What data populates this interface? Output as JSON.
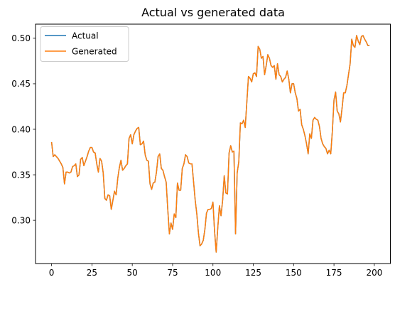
{
  "chart_data": {
    "type": "line",
    "title": "Actual vs generated data",
    "xlabel": "",
    "ylabel": "",
    "xlim": [
      -9.95,
      209.95
    ],
    "ylim": [
      0.2525,
      0.5155
    ],
    "x_ticks": [
      0,
      25,
      50,
      75,
      100,
      125,
      150,
      175,
      200
    ],
    "x_tick_labels": [
      "0",
      "25",
      "50",
      "75",
      "100",
      "125",
      "150",
      "175",
      "200"
    ],
    "y_ticks": [
      0.3,
      0.35,
      0.4,
      0.45,
      0.5
    ],
    "y_tick_labels": [
      "0.30",
      "0.35",
      "0.40",
      "0.45",
      "0.50"
    ],
    "grid": false,
    "legend_position": "upper-left",
    "x_start": 0,
    "x_step": 1,
    "series": [
      {
        "name": "Actual",
        "color": "#1f77b4",
        "values": [
          0.386,
          0.37,
          0.372,
          0.37,
          0.368,
          0.365,
          0.362,
          0.358,
          0.34,
          0.353,
          0.353,
          0.352,
          0.353,
          0.359,
          0.36,
          0.362,
          0.348,
          0.35,
          0.367,
          0.369,
          0.36,
          0.365,
          0.37,
          0.376,
          0.38,
          0.38,
          0.375,
          0.374,
          0.362,
          0.353,
          0.368,
          0.365,
          0.352,
          0.324,
          0.322,
          0.328,
          0.327,
          0.312,
          0.322,
          0.332,
          0.328,
          0.346,
          0.358,
          0.366,
          0.355,
          0.357,
          0.36,
          0.362,
          0.39,
          0.394,
          0.384,
          0.394,
          0.398,
          0.401,
          0.402,
          0.383,
          0.384,
          0.387,
          0.372,
          0.366,
          0.365,
          0.34,
          0.334,
          0.341,
          0.342,
          0.353,
          0.37,
          0.373,
          0.357,
          0.355,
          0.348,
          0.342,
          0.312,
          0.285,
          0.297,
          0.29,
          0.307,
          0.303,
          0.341,
          0.333,
          0.333,
          0.357,
          0.362,
          0.372,
          0.37,
          0.363,
          0.362,
          0.362,
          0.342,
          0.322,
          0.307,
          0.286,
          0.272,
          0.274,
          0.278,
          0.29,
          0.308,
          0.312,
          0.312,
          0.313,
          0.32,
          0.288,
          0.265,
          0.292,
          0.316,
          0.305,
          0.322,
          0.349,
          0.33,
          0.329,
          0.374,
          0.382,
          0.375,
          0.376,
          0.285,
          0.352,
          0.364,
          0.407,
          0.406,
          0.41,
          0.402,
          0.43,
          0.458,
          0.456,
          0.452,
          0.461,
          0.462,
          0.458,
          0.491,
          0.488,
          0.478,
          0.48,
          0.46,
          0.47,
          0.482,
          0.478,
          0.47,
          0.468,
          0.47,
          0.455,
          0.472,
          0.46,
          0.458,
          0.452,
          0.455,
          0.457,
          0.464,
          0.455,
          0.44,
          0.45,
          0.45,
          0.44,
          0.434,
          0.42,
          0.422,
          0.405,
          0.4,
          0.393,
          0.384,
          0.373,
          0.395,
          0.39,
          0.41,
          0.413,
          0.411,
          0.41,
          0.403,
          0.39,
          0.384,
          0.381,
          0.379,
          0.373,
          0.377,
          0.373,
          0.398,
          0.432,
          0.441,
          0.42,
          0.417,
          0.408,
          0.423,
          0.44,
          0.44,
          0.448,
          0.46,
          0.472,
          0.499,
          0.492,
          0.49,
          0.503,
          0.497,
          0.493,
          0.502,
          0.503,
          0.499,
          0.496,
          0.492,
          0.492
        ]
      },
      {
        "name": "Generated",
        "color": "#ff7f0e",
        "values": [
          0.386,
          0.37,
          0.372,
          0.37,
          0.368,
          0.365,
          0.362,
          0.358,
          0.34,
          0.353,
          0.353,
          0.352,
          0.353,
          0.359,
          0.36,
          0.362,
          0.348,
          0.35,
          0.367,
          0.369,
          0.36,
          0.365,
          0.37,
          0.376,
          0.38,
          0.38,
          0.375,
          0.374,
          0.362,
          0.353,
          0.368,
          0.365,
          0.352,
          0.324,
          0.322,
          0.328,
          0.327,
          0.312,
          0.322,
          0.332,
          0.328,
          0.346,
          0.358,
          0.366,
          0.355,
          0.357,
          0.36,
          0.362,
          0.39,
          0.394,
          0.384,
          0.394,
          0.398,
          0.401,
          0.402,
          0.383,
          0.384,
          0.387,
          0.372,
          0.366,
          0.365,
          0.34,
          0.334,
          0.341,
          0.342,
          0.353,
          0.37,
          0.373,
          0.357,
          0.355,
          0.348,
          0.342,
          0.312,
          0.285,
          0.297,
          0.29,
          0.307,
          0.303,
          0.341,
          0.333,
          0.333,
          0.357,
          0.362,
          0.372,
          0.37,
          0.363,
          0.362,
          0.362,
          0.342,
          0.322,
          0.307,
          0.286,
          0.272,
          0.274,
          0.278,
          0.29,
          0.308,
          0.312,
          0.312,
          0.313,
          0.32,
          0.288,
          0.265,
          0.292,
          0.316,
          0.305,
          0.322,
          0.349,
          0.33,
          0.329,
          0.374,
          0.382,
          0.375,
          0.376,
          0.285,
          0.352,
          0.364,
          0.407,
          0.406,
          0.41,
          0.402,
          0.43,
          0.458,
          0.456,
          0.452,
          0.461,
          0.462,
          0.458,
          0.491,
          0.488,
          0.478,
          0.48,
          0.46,
          0.47,
          0.482,
          0.478,
          0.47,
          0.468,
          0.47,
          0.455,
          0.472,
          0.46,
          0.458,
          0.452,
          0.455,
          0.457,
          0.464,
          0.455,
          0.44,
          0.45,
          0.45,
          0.44,
          0.434,
          0.42,
          0.422,
          0.405,
          0.4,
          0.393,
          0.384,
          0.373,
          0.395,
          0.39,
          0.41,
          0.413,
          0.411,
          0.41,
          0.403,
          0.39,
          0.384,
          0.381,
          0.379,
          0.373,
          0.377,
          0.373,
          0.398,
          0.432,
          0.441,
          0.42,
          0.417,
          0.408,
          0.423,
          0.44,
          0.44,
          0.448,
          0.46,
          0.472,
          0.499,
          0.492,
          0.49,
          0.503,
          0.497,
          0.493,
          0.502,
          0.503,
          0.499,
          0.496,
          0.492,
          0.492
        ]
      }
    ]
  }
}
